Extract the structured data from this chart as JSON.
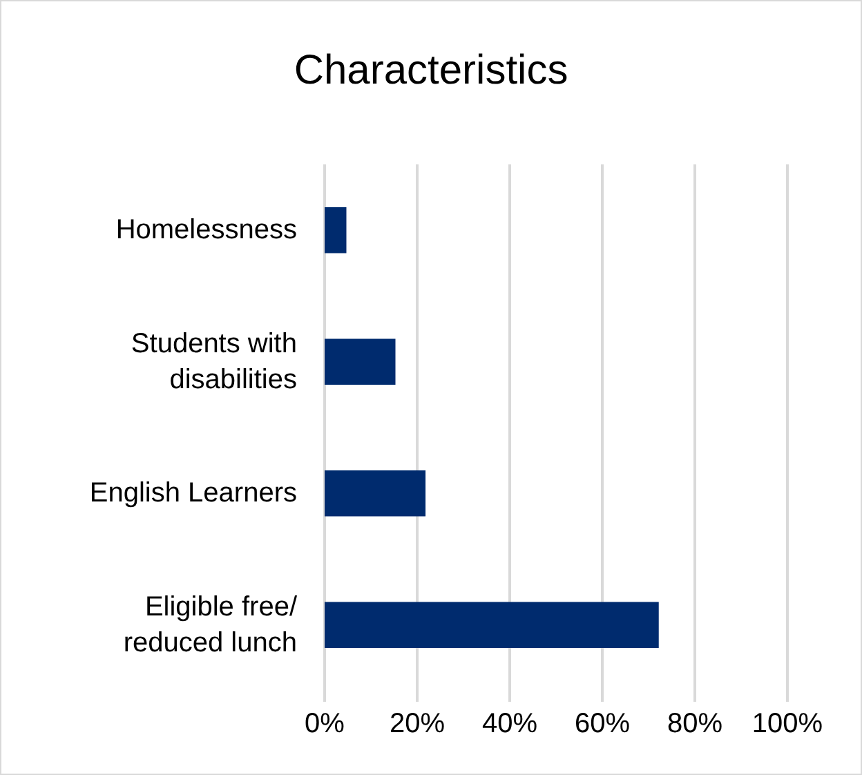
{
  "chart_data": {
    "type": "bar",
    "orientation": "horizontal",
    "title": "Characteristics",
    "categories": [
      "Homelessness",
      "Students with\ndisabilities",
      "English Learners",
      "Eligible free/\nreduced lunch"
    ],
    "values": [
      4.7,
      15.3,
      21.8,
      72.2
    ],
    "color": "#002b6e",
    "xlim": [
      0,
      100
    ],
    "xticks": [
      {
        "value": 0,
        "label": "0%"
      },
      {
        "value": 20,
        "label": "20%"
      },
      {
        "value": 40,
        "label": "40%"
      },
      {
        "value": 60,
        "label": "60%"
      },
      {
        "value": 80,
        "label": "80%"
      },
      {
        "value": 100,
        "label": "100%"
      }
    ],
    "grid": "x"
  }
}
